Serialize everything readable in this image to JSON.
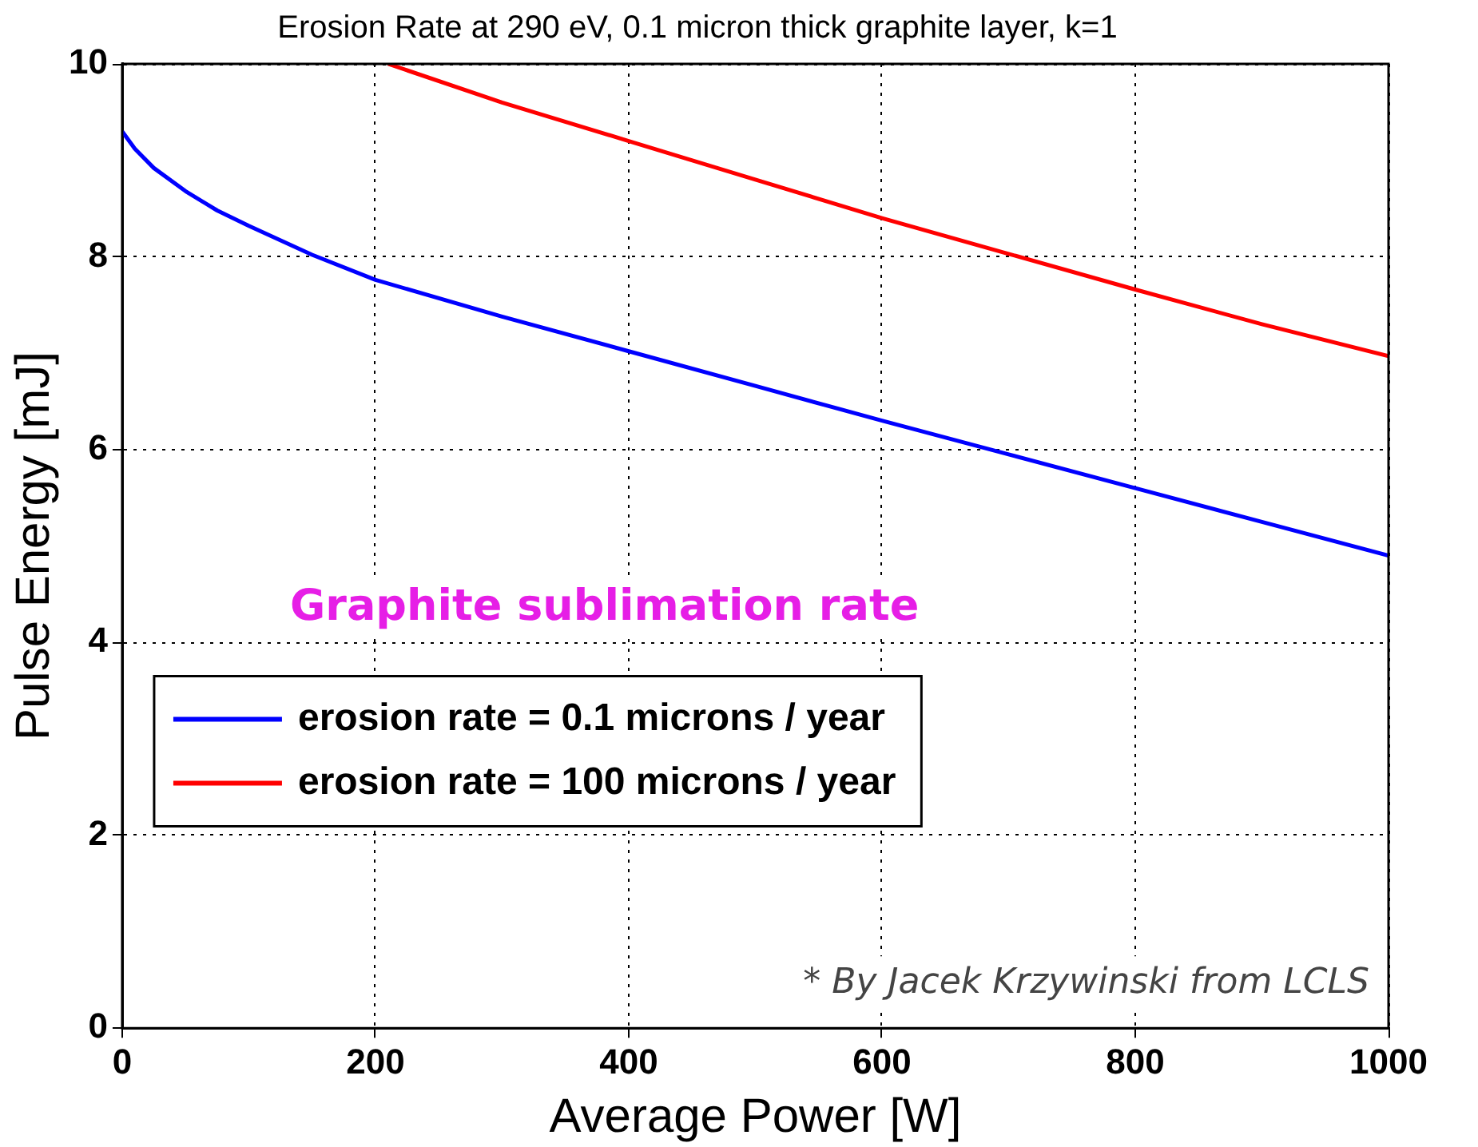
{
  "chart_data": {
    "type": "line",
    "title": "Erosion Rate at 290 eV, 0.1 micron thick graphite layer, k=1",
    "xlabel": "Average Power [W]",
    "ylabel": "Pulse Energy [mJ]",
    "xlim": [
      0,
      1000
    ],
    "xticks": [
      0,
      200,
      400,
      600,
      800,
      1000
    ],
    "ylim": [
      0,
      10
    ],
    "yticks": [
      0,
      2,
      4,
      6,
      8,
      10
    ],
    "grid": true,
    "legend": "center left",
    "marker": "none",
    "line_style": "solid",
    "annotations": [
      "Graphite sublimation rate",
      "* By Jacek Krzywinski from LCLS"
    ],
    "series": [
      {
        "name": "erosion rate = 0.1 microns / year",
        "color": "#0000ff",
        "x": [
          0,
          10,
          25,
          50,
          75,
          100,
          150,
          200,
          300,
          400,
          500,
          600,
          700,
          800,
          900,
          1000
        ],
        "values": [
          9.3,
          9.12,
          8.92,
          8.68,
          8.48,
          8.32,
          8.02,
          7.76,
          7.38,
          7.02,
          6.66,
          6.3,
          5.95,
          5.6,
          5.25,
          4.9
        ]
      },
      {
        "name": "erosion rate = 100 microns / year",
        "color": "#ff0000",
        "x": [
          210,
          300,
          400,
          500,
          600,
          700,
          800,
          900,
          1000
        ],
        "values": [
          10,
          9.6,
          9.2,
          8.8,
          8.4,
          8.03,
          7.66,
          7.3,
          6.97
        ]
      }
    ]
  }
}
